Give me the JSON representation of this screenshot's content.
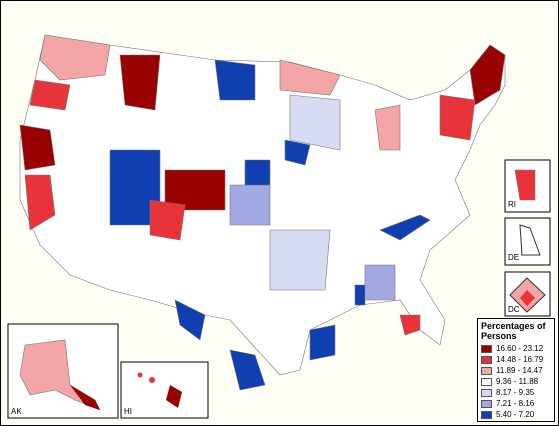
{
  "legend": {
    "title": "Percentages of Persons",
    "items": [
      {
        "label": "16.60 - 23.12",
        "color": "#990000"
      },
      {
        "label": "14.48 - 16.79",
        "color": "#e8333a"
      },
      {
        "label": "11.89 - 14.47",
        "color": "#f4a6a6"
      },
      {
        "label": "9.36 - 11.88",
        "color": "#ffffff"
      },
      {
        "label": "8.17 - 9.35",
        "color": "#d8dcf2"
      },
      {
        "label": "7.21 - 8.16",
        "color": "#a3a9e3"
      },
      {
        "label": "5.40 - 7.20",
        "color": "#0f3fb0"
      }
    ]
  },
  "insets": [
    {
      "label": "AK"
    },
    {
      "label": "HI"
    },
    {
      "label": "RI"
    },
    {
      "label": "DE"
    },
    {
      "label": "DC"
    }
  ]
}
